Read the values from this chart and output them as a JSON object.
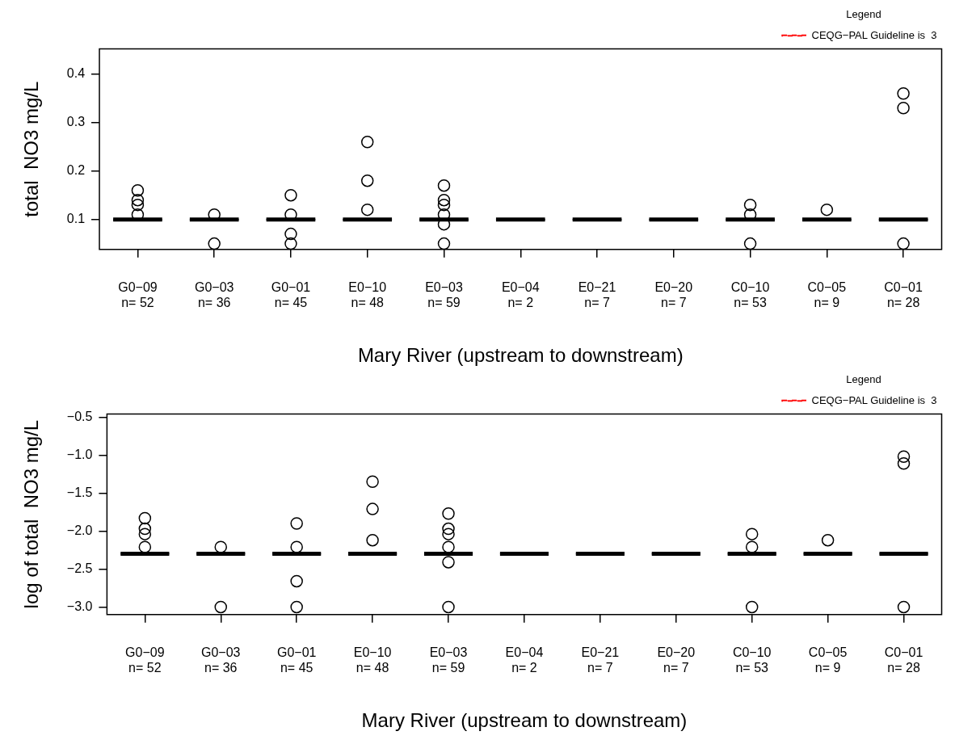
{
  "chart_data": [
    {
      "type": "box",
      "ylabel": "total  NO3 mg/L",
      "xlabel": "Mary River (upstream to downstream)",
      "categories": [
        "G0−09\nn= 52",
        "G0−03\nn= 36",
        "G0−01\nn= 45",
        "E0−10\nn= 48",
        "E0−03\nn= 59",
        "E0−04\nn= 2",
        "E0−21\nn= 7",
        "E0−20\nn= 7",
        "C0−10\nn= 53",
        "C0−05\nn= 9",
        "C0−01\nn= 28"
      ],
      "color": "#000000",
      "marker": "circle",
      "legend": "top right",
      "legend_title": "Legend",
      "ylim": [
        0.038,
        0.452
      ],
      "yticks": [
        0.1,
        0.2,
        0.3,
        0.4
      ],
      "series": [
        {
          "type": "line",
          "name": "CEQG−PAL Guideline is  3",
          "color": "#ff0000",
          "line_style": "dashed",
          "values": [
            null,
            null,
            null,
            null,
            null,
            null,
            null,
            null,
            null,
            null,
            null
          ]
        }
      ],
      "boxes": [
        {
          "low": 0.1,
          "q1": 0.1,
          "median": 0.1,
          "q3": 0.1,
          "high": 0.1,
          "outliers": [
            0.16,
            0.14,
            0.13,
            0.11
          ]
        },
        {
          "low": 0.1,
          "q1": 0.1,
          "median": 0.1,
          "q3": 0.1,
          "high": 0.1,
          "outliers": [
            0.11,
            0.05
          ]
        },
        {
          "low": 0.1,
          "q1": 0.1,
          "median": 0.1,
          "q3": 0.1,
          "high": 0.1,
          "outliers": [
            0.15,
            0.11,
            0.07,
            0.05
          ]
        },
        {
          "low": 0.1,
          "q1": 0.1,
          "median": 0.1,
          "q3": 0.1,
          "high": 0.1,
          "outliers": [
            0.26,
            0.18,
            0.12
          ]
        },
        {
          "low": 0.1,
          "q1": 0.1,
          "median": 0.1,
          "q3": 0.1,
          "high": 0.1,
          "outliers": [
            0.17,
            0.14,
            0.13,
            0.11,
            0.09,
            0.05
          ]
        },
        {
          "low": 0.1,
          "q1": 0.1,
          "median": 0.1,
          "q3": 0.1,
          "high": 0.1
        },
        {
          "low": 0.1,
          "q1": 0.1,
          "median": 0.1,
          "q3": 0.1,
          "high": 0.1
        },
        {
          "low": 0.1,
          "q1": 0.1,
          "median": 0.1,
          "q3": 0.1,
          "high": 0.1
        },
        {
          "low": 0.1,
          "q1": 0.1,
          "median": 0.1,
          "q3": 0.1,
          "high": 0.1,
          "outliers": [
            0.13,
            0.11,
            0.05
          ]
        },
        {
          "low": 0.1,
          "q1": 0.1,
          "median": 0.1,
          "q3": 0.1,
          "high": 0.1,
          "outliers": [
            0.12
          ]
        },
        {
          "low": 0.1,
          "q1": 0.1,
          "median": 0.1,
          "q3": 0.1,
          "high": 0.1,
          "outliers": [
            0.36,
            0.33,
            0.05
          ]
        }
      ]
    },
    {
      "type": "box",
      "ylabel": "log of total  NO3 mg/L",
      "xlabel": "Mary River (upstream to downstream)",
      "categories": [
        "G0−09\nn= 52",
        "G0−03\nn= 36",
        "G0−01\nn= 45",
        "E0−10\nn= 48",
        "E0−03\nn= 59",
        "E0−04\nn= 2",
        "E0−21\nn= 7",
        "E0−20\nn= 7",
        "C0−10\nn= 53",
        "C0−05\nn= 9",
        "C0−01\nn= 28"
      ],
      "color": "#000000",
      "marker": "circle",
      "legend": "top right",
      "legend_title": "Legend",
      "ylim": [
        -3.1,
        -0.46
      ],
      "yticks": [
        {
          "value": -3.0,
          "label": "−3.0"
        },
        {
          "value": -2.5,
          "label": "−2.5"
        },
        {
          "value": -2.0,
          "label": "−2.0"
        },
        {
          "value": -1.5,
          "label": "−1.5"
        },
        {
          "value": -1.0,
          "label": "−1.0"
        },
        {
          "value": -0.5,
          "label": "−0.5"
        }
      ],
      "series": [
        {
          "type": "line",
          "name": "CEQG−PAL Guideline is  3",
          "color": "#ff0000",
          "line_style": "dashed",
          "values": [
            null,
            null,
            null,
            null,
            null,
            null,
            null,
            null,
            null,
            null,
            null
          ]
        }
      ],
      "boxes": [
        {
          "low": -2.3,
          "q1": -2.3,
          "median": -2.3,
          "q3": -2.3,
          "high": -2.3,
          "outliers": [
            -1.83,
            -1.97,
            -2.04,
            -2.21
          ]
        },
        {
          "low": -2.3,
          "q1": -2.3,
          "median": -2.3,
          "q3": -2.3,
          "high": -2.3,
          "outliers": [
            -2.21,
            -3.0
          ]
        },
        {
          "low": -2.3,
          "q1": -2.3,
          "median": -2.3,
          "q3": -2.3,
          "high": -2.3,
          "outliers": [
            -1.9,
            -2.21,
            -2.66,
            -3.0
          ]
        },
        {
          "low": -2.3,
          "q1": -2.3,
          "median": -2.3,
          "q3": -2.3,
          "high": -2.3,
          "outliers": [
            -1.35,
            -1.71,
            -2.12
          ]
        },
        {
          "low": -2.3,
          "q1": -2.3,
          "median": -2.3,
          "q3": -2.3,
          "high": -2.3,
          "outliers": [
            -1.77,
            -1.97,
            -2.04,
            -2.21,
            -2.41,
            -3.0
          ]
        },
        {
          "low": -2.3,
          "q1": -2.3,
          "median": -2.3,
          "q3": -2.3,
          "high": -2.3
        },
        {
          "low": -2.3,
          "q1": -2.3,
          "median": -2.3,
          "q3": -2.3,
          "high": -2.3
        },
        {
          "low": -2.3,
          "q1": -2.3,
          "median": -2.3,
          "q3": -2.3,
          "high": -2.3
        },
        {
          "low": -2.3,
          "q1": -2.3,
          "median": -2.3,
          "q3": -2.3,
          "high": -2.3,
          "outliers": [
            -2.04,
            -2.21,
            -3.0
          ]
        },
        {
          "low": -2.3,
          "q1": -2.3,
          "median": -2.3,
          "q3": -2.3,
          "high": -2.3,
          "outliers": [
            -2.12
          ]
        },
        {
          "low": -2.3,
          "q1": -2.3,
          "median": -2.3,
          "q3": -2.3,
          "high": -2.3,
          "outliers": [
            -1.02,
            -1.11,
            -3.0
          ]
        }
      ]
    }
  ]
}
